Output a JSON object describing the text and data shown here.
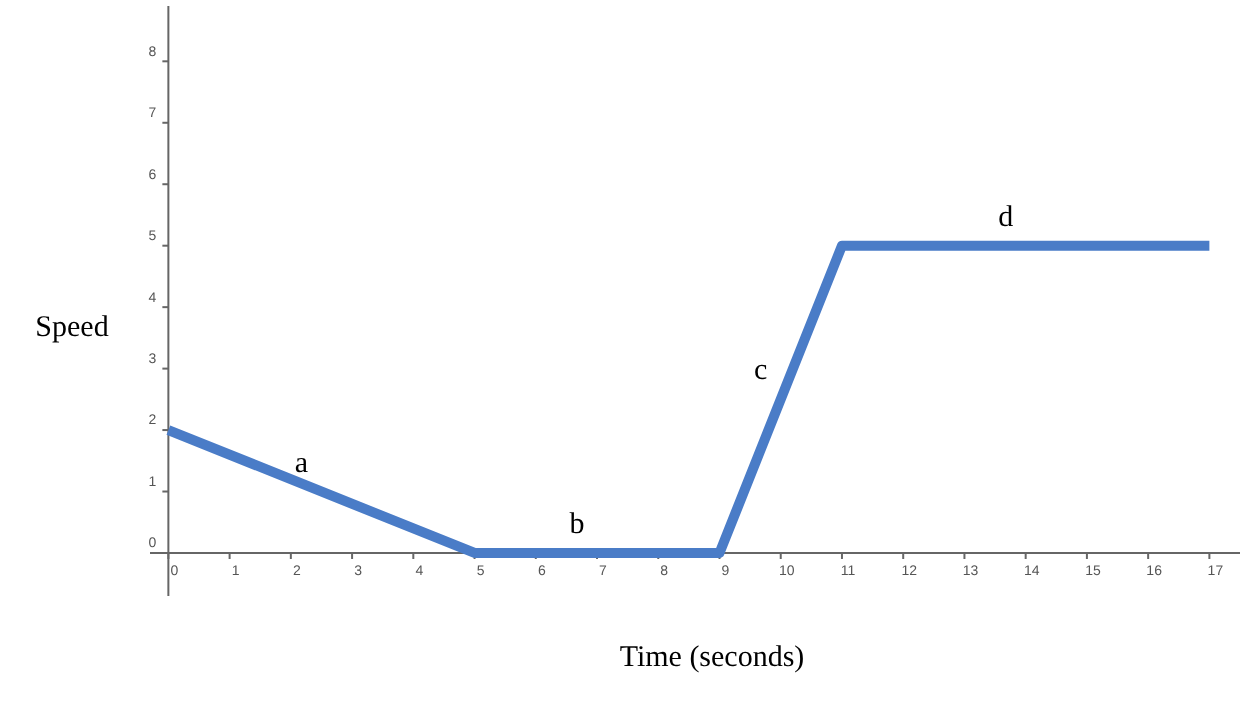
{
  "chart_data": {
    "type": "line",
    "xlabel": "Time (seconds)",
    "ylabel": "Speed",
    "x": [
      0,
      5,
      9,
      11,
      17
    ],
    "series": [
      {
        "color": "#4a7cc7",
        "values": [
          2,
          0,
          0,
          5,
          5
        ]
      }
    ],
    "xlim": [
      -0.3,
      17.5
    ],
    "ylim": [
      -0.7,
      8.9
    ],
    "xticks": [
      0,
      1,
      2,
      3,
      4,
      5,
      6,
      7,
      8,
      9,
      10,
      11,
      12,
      13,
      14,
      15,
      16,
      17
    ],
    "yticks": [
      0,
      1,
      2,
      3,
      4,
      5,
      6,
      7,
      8
    ],
    "annotations": [
      {
        "text": "a",
        "x": 2.5,
        "y": 1
      },
      {
        "text": "b",
        "x": 7,
        "y": 0
      },
      {
        "text": "c",
        "x": 10,
        "y": 2.5
      },
      {
        "text": "d",
        "x": 14,
        "y": 5
      }
    ],
    "grid": false,
    "marker": "none",
    "line_style": "solid"
  }
}
